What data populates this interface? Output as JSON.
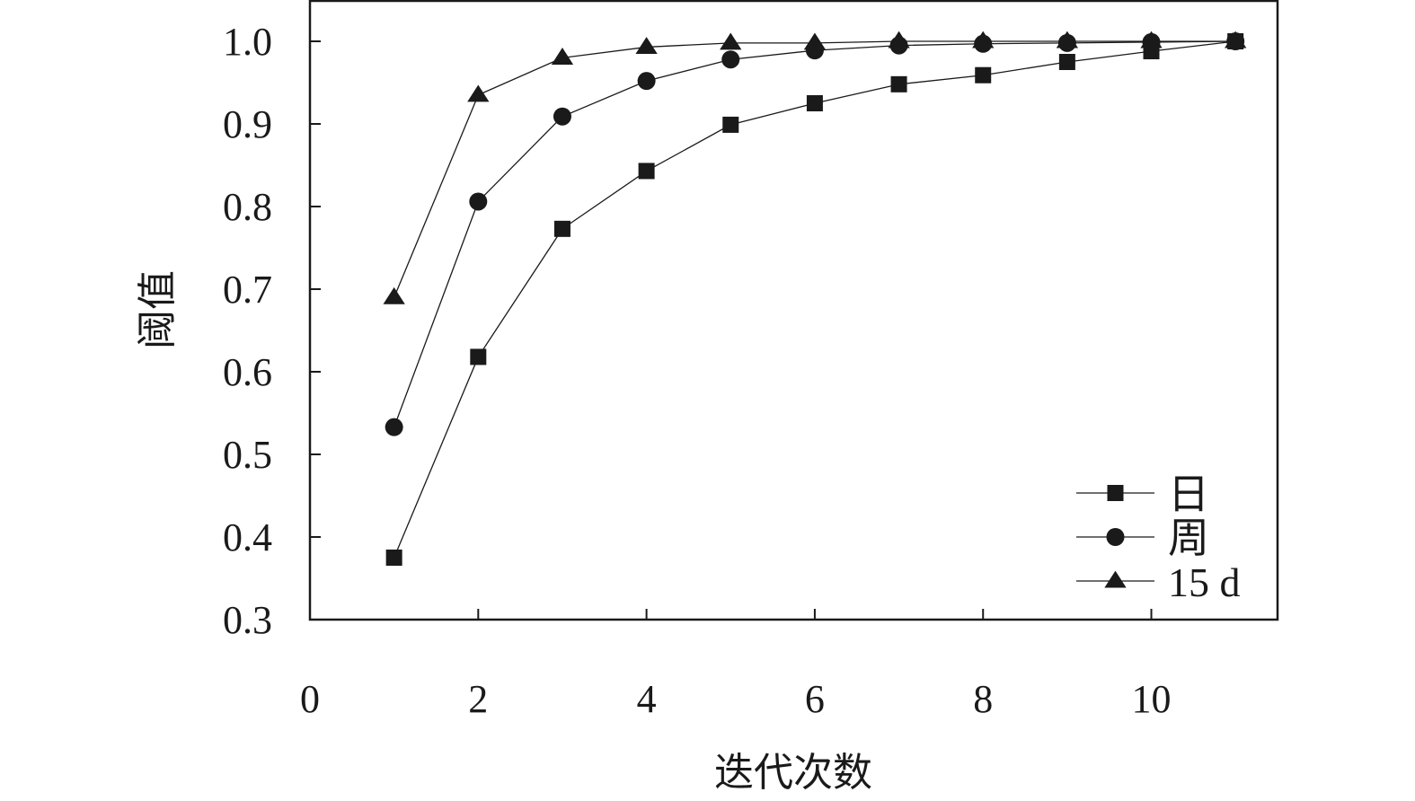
{
  "chart_data": {
    "type": "line",
    "xlabel": "迭代次数",
    "ylabel": "阈值",
    "xlim": [
      0,
      11.5
    ],
    "ylim": [
      0.3,
      1.05
    ],
    "xticks": [
      0,
      2,
      4,
      6,
      8,
      10
    ],
    "xtick_labels": [
      "0",
      "2",
      "4",
      "6",
      "8",
      "10"
    ],
    "yticks": [
      0.3,
      0.4,
      0.5,
      0.6,
      0.7,
      0.8,
      0.9,
      1.0
    ],
    "ytick_labels": [
      "0.3",
      "0.4",
      "0.5",
      "0.6",
      "0.7",
      "0.8",
      "0.9",
      "1.0"
    ],
    "grid": false,
    "legend_position": "bottom-right",
    "x": [
      1,
      2,
      3,
      4,
      5,
      6,
      7,
      8,
      9,
      10,
      11
    ],
    "series": [
      {
        "name": "日",
        "marker": "square",
        "color": "#1a1a1a",
        "values": [
          0.375,
          0.618,
          0.773,
          0.843,
          0.899,
          0.925,
          0.948,
          0.959,
          0.975,
          0.988,
          1.0
        ]
      },
      {
        "name": "周",
        "marker": "circle",
        "color": "#1a1a1a",
        "values": [
          0.533,
          0.806,
          0.909,
          0.952,
          0.978,
          0.989,
          0.995,
          0.997,
          0.998,
          0.999,
          1.0
        ]
      },
      {
        "name": "15 d",
        "marker": "triangle",
        "color": "#1a1a1a",
        "values": [
          0.69,
          0.935,
          0.98,
          0.993,
          0.998,
          0.998,
          1.0,
          1.0,
          1.0,
          1.0,
          1.0
        ]
      }
    ]
  }
}
